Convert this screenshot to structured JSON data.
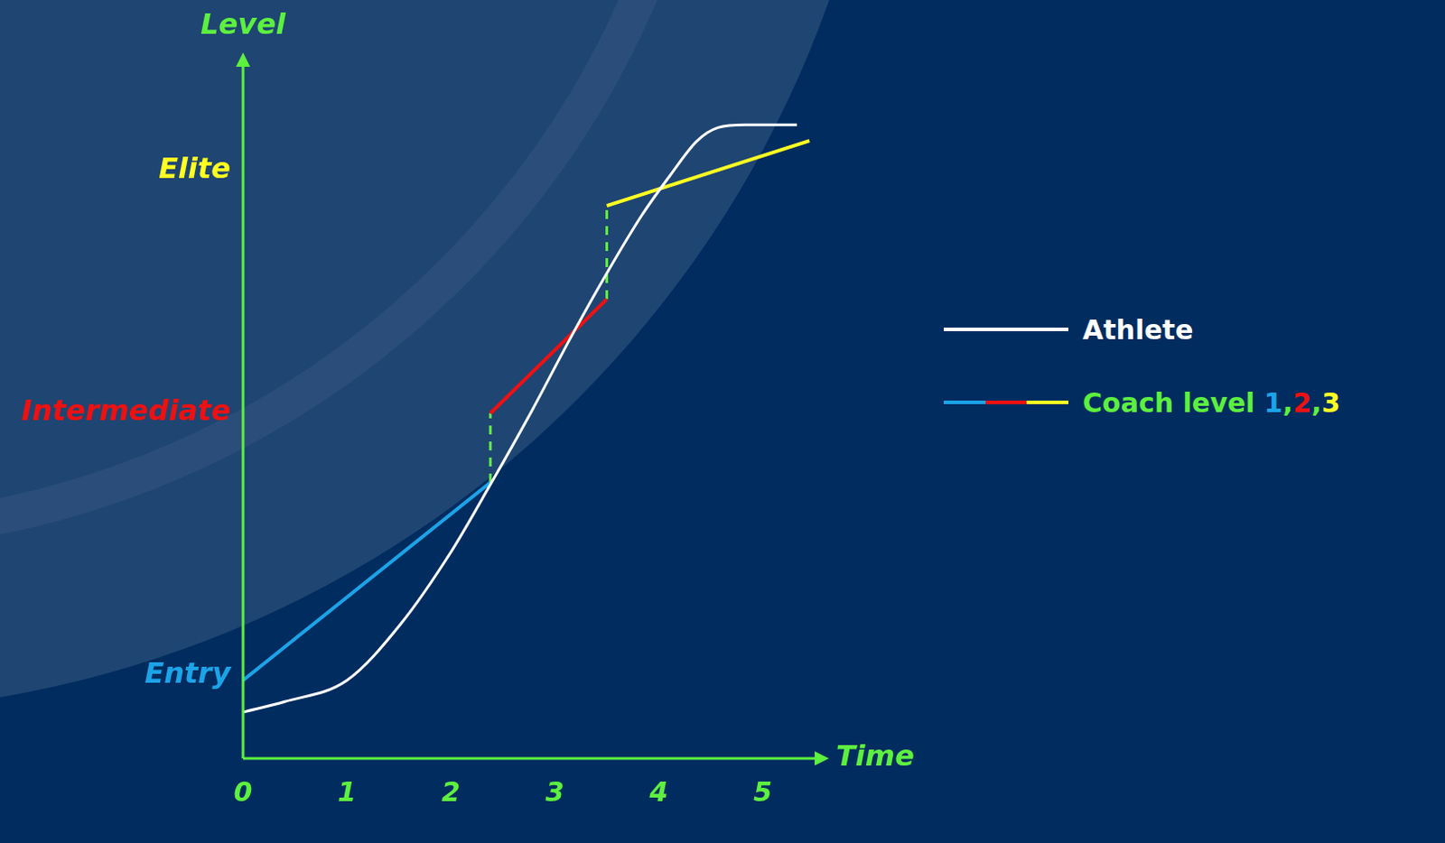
{
  "chart_data": {
    "type": "line",
    "x_label": "Time",
    "y_label": "Level",
    "xlim": [
      0,
      5.5
    ],
    "xticks": [
      0,
      1,
      2,
      3,
      4,
      5
    ],
    "ylim": [
      0,
      10
    ],
    "yticks": [
      {
        "value": 1.2,
        "label": "Entry"
      },
      {
        "value": 5,
        "label": "Intermediate"
      },
      {
        "value": 8.5,
        "label": "Elite"
      }
    ],
    "grid": false,
    "legend": "right",
    "series": [
      {
        "name": "Athlete",
        "color": "#ffffff",
        "x": [
          0,
          0.4,
          1.0,
          1.52,
          1.99,
          2.38,
          2.78,
          3.18,
          3.51,
          3.84,
          4.11,
          4.37,
          4.57,
          4.83,
          5.33
        ],
        "values": [
          0.67,
          0.82,
          1.13,
          1.95,
          2.96,
          3.96,
          5.03,
          6.16,
          7.04,
          7.86,
          8.43,
          8.93,
          9.12,
          9.16,
          9.16
        ]
      }
    ],
    "coach": {
      "name": "Coach level 1,2,3",
      "segments": [
        {
          "name": "1",
          "color": "#1ca3e8",
          "x": [
            0,
            2.38
          ],
          "values": [
            1.13,
            3.99
          ]
        },
        {
          "name": "2",
          "color": "#ee1111",
          "x": [
            2.38,
            3.5
          ],
          "values": [
            4.99,
            6.64
          ]
        },
        {
          "name": "3",
          "color": "#ffff22",
          "x": [
            3.5,
            5.45
          ],
          "values": [
            7.99,
            8.93
          ]
        }
      ]
    }
  }
}
